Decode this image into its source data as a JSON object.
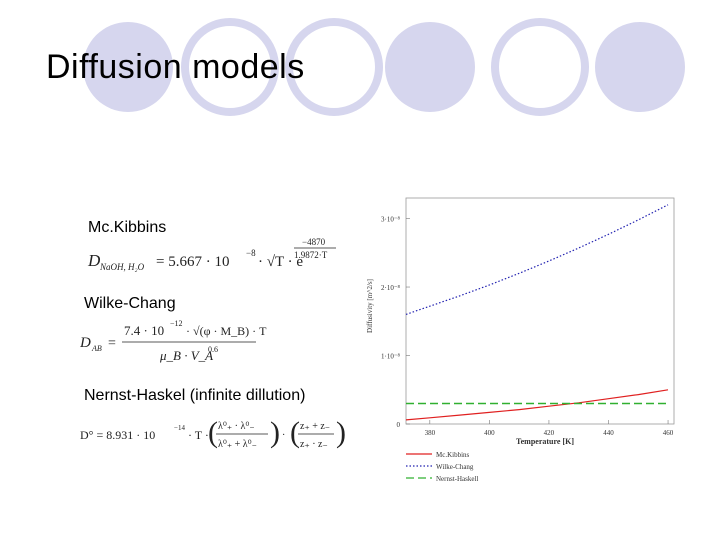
{
  "slide": {
    "title": "Diffusion models",
    "models": [
      {
        "label": "Mc.Kibbins"
      },
      {
        "label": "Wilke-Chang"
      },
      {
        "label": "Nernst-Haskel (infinite dillution)"
      }
    ]
  },
  "formulas": {
    "mckibbins": {
      "lhs_main": "D",
      "lhs_sub": "NaOH, H₂O",
      "eq": "= 5.667 · 10",
      "exp1": "−8",
      "mid": "· √T · e",
      "exp_num": "−4870",
      "exp_den": "1.9872·T"
    },
    "wilke": {
      "lhs_main": "D",
      "lhs_sub": "AB",
      "eq": "=",
      "num": "7.4 · 10",
      "num_exp": "−12",
      "num_rest": "· √(φ · M_B) · T",
      "den": "μ_B · V_A",
      "den_exp": "0.6"
    },
    "nernst": {
      "lhs": "D° = 8.931 · 10",
      "lhs_exp": "−14",
      "t": "· T ·",
      "frac1_num": "λ⁰₊ · λ⁰₋",
      "frac1_den": "λ⁰₊ + λ⁰₋",
      "frac2_num": "z₊ + z₋",
      "frac2_den": "z₊ · z₋"
    }
  },
  "colors": {
    "circle": "#d6d6ee",
    "mckibbins": "#e02020",
    "wilke": "#2020b0",
    "nernst": "#30b030"
  },
  "chart_data": {
    "type": "line",
    "xlabel": "Temperature [K]",
    "ylabel": "Diffusivity [m^2/s]",
    "xlim": [
      372,
      462
    ],
    "ylim": [
      0,
      3.3e-08
    ],
    "x_ticks": [
      380,
      400,
      420,
      440,
      460
    ],
    "y_ticks": [
      {
        "value": 0,
        "label": "0"
      },
      {
        "value": 1e-08,
        "label": "1·10⁻⁸"
      },
      {
        "value": 2e-08,
        "label": "2·10⁻⁸"
      },
      {
        "value": 3e-08,
        "label": "3·10⁻⁸"
      }
    ],
    "x": [
      372,
      380,
      390,
      400,
      410,
      420,
      430,
      440,
      450,
      460
    ],
    "series": [
      {
        "name": "Mc.Kibbins",
        "style": "solid",
        "color": "#e02020",
        "values": [
          6e-10,
          9e-10,
          1.3e-09,
          1.7e-09,
          2.1e-09,
          2.6e-09,
          3.1e-09,
          3.7e-09,
          4.3e-09,
          5e-09
        ]
      },
      {
        "name": "Wilke-Chang",
        "style": "dotted",
        "color": "#2020b0",
        "values": [
          1.6e-08,
          1.72e-08,
          1.87e-08,
          2.03e-08,
          2.2e-08,
          2.38e-08,
          2.57e-08,
          2.77e-08,
          2.98e-08,
          3.2e-08
        ]
      },
      {
        "name": "Nernst-Haskell",
        "style": "dashed",
        "color": "#30b030",
        "values": [
          3e-09,
          3e-09,
          3e-09,
          3e-09,
          3e-09,
          3e-09,
          3e-09,
          3e-09,
          3e-09,
          3e-09
        ]
      }
    ]
  }
}
